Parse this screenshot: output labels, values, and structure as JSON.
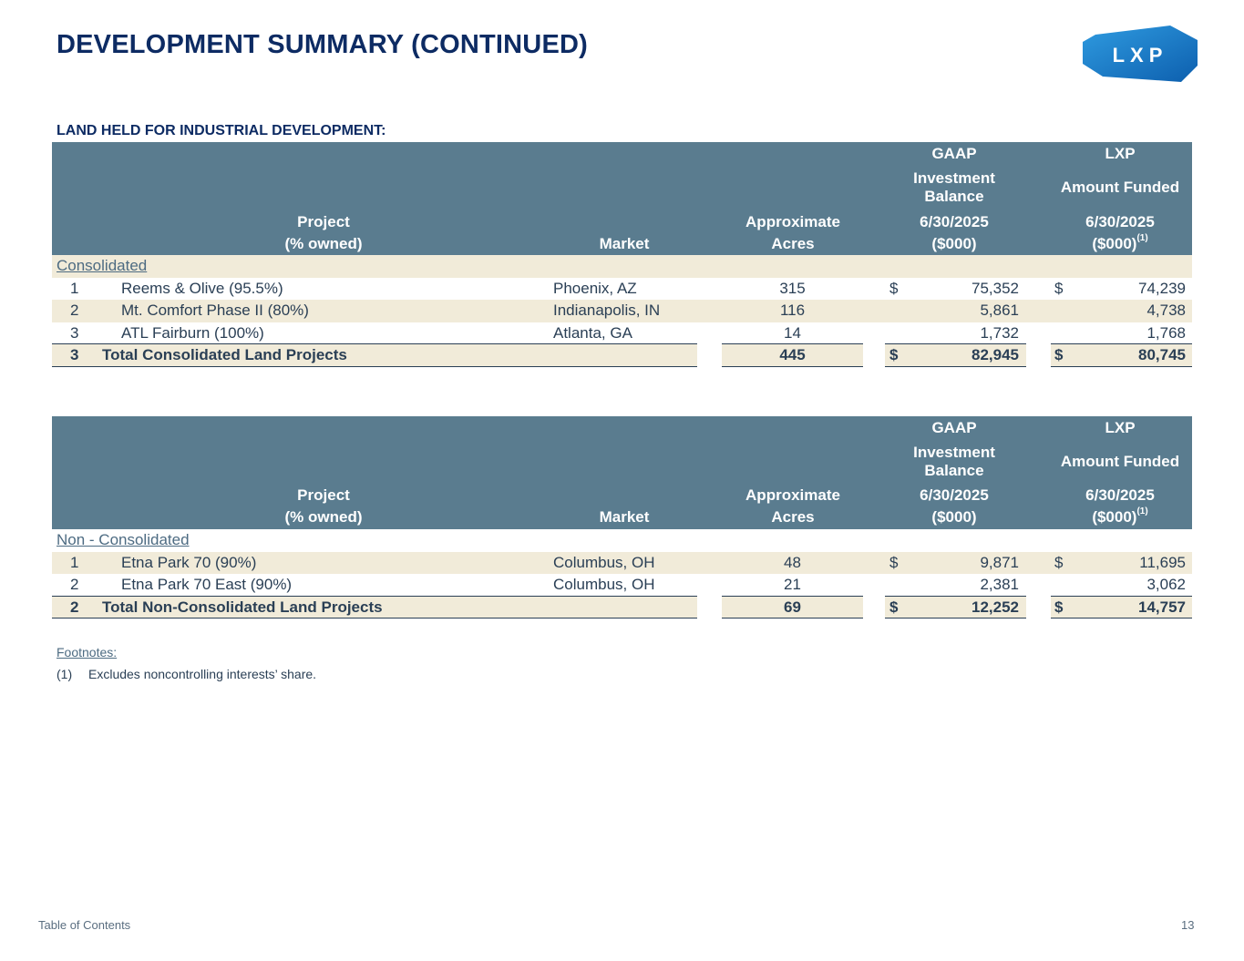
{
  "page": {
    "title": "DEVELOPMENT SUMMARY (CONTINUED)",
    "logo_text": "LXP",
    "section_title": "LAND HELD FOR INDUSTRIAL DEVELOPMENT:"
  },
  "headers": {
    "gaap": "GAAP",
    "lxp": "LXP",
    "investment": "Investment",
    "balance": "Balance",
    "amount_funded": "Amount Funded",
    "project": "Project",
    "owned": "(% owned)",
    "market": "Market",
    "approximate": "Approximate",
    "acres": "Acres",
    "date_gaap": "6/30/2025",
    "date_lxp": "6/30/2025",
    "units_gaap": "($000)",
    "units_lxp": "($000)",
    "footnote_ref": "(1)"
  },
  "table1": {
    "group": "Consolidated",
    "rows": [
      {
        "n": "1",
        "project": "Reems & Olive (95.5%)",
        "market": "Phoenix, AZ",
        "acres": "315",
        "gaap_cur": "$",
        "gaap": "75,352",
        "lxp_cur": "$",
        "lxp": "74,239"
      },
      {
        "n": "2",
        "project": "Mt. Comfort Phase II (80%)",
        "market": "Indianapolis, IN",
        "acres": "116",
        "gaap_cur": "",
        "gaap": "5,861",
        "lxp_cur": "",
        "lxp": "4,738"
      },
      {
        "n": "3",
        "project": "ATL Fairburn (100%)",
        "market": "Atlanta, GA",
        "acres": "14",
        "gaap_cur": "",
        "gaap": "1,732",
        "lxp_cur": "",
        "lxp": "1,768"
      }
    ],
    "total": {
      "n": "3",
      "label": "Total Consolidated Land Projects",
      "acres": "445",
      "gaap_cur": "$",
      "gaap": "82,945",
      "lxp_cur": "$",
      "lxp": "80,745"
    }
  },
  "table2": {
    "group": "Non - Consolidated",
    "rows": [
      {
        "n": "1",
        "project": "Etna Park 70 (90%)",
        "market": "Columbus, OH",
        "acres": "48",
        "gaap_cur": "$",
        "gaap": "9,871",
        "lxp_cur": "$",
        "lxp": "11,695"
      },
      {
        "n": "2",
        "project": "Etna Park 70 East (90%)",
        "market": "Columbus, OH",
        "acres": "21",
        "gaap_cur": "",
        "gaap": "2,381",
        "lxp_cur": "",
        "lxp": "3,062"
      }
    ],
    "total": {
      "n": "2",
      "label": "Total Non-Consolidated Land Projects",
      "acres": "69",
      "gaap_cur": "$",
      "gaap": "12,252",
      "lxp_cur": "$",
      "lxp": "14,757"
    }
  },
  "footnotes": {
    "title": "Footnotes:",
    "items": [
      {
        "num": "(1)",
        "text": "Excludes noncontrolling interests’ share."
      }
    ]
  },
  "footer": {
    "toc_link": "Table of Contents",
    "page_number": "13"
  }
}
